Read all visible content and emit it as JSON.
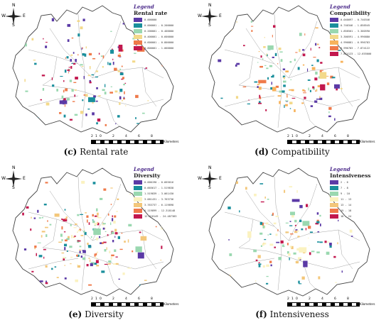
{
  "compass": {
    "n": "N",
    "s": "S",
    "e": "E",
    "w": "W"
  },
  "scale": {
    "ticks": [
      "2",
      "1",
      "0",
      "2",
      "4",
      "6",
      "8"
    ],
    "unit": "Kilometers"
  },
  "legend_word": "Legend",
  "panels": [
    {
      "id": "c",
      "letter": "(c)",
      "caption": "Rental rate",
      "legend_title": "Rental rate",
      "classes": [
        "0.000000",
        "0.000001 - 0.200000",
        "0.200001 - 0.400000",
        "0.400001 - 0.600000",
        "0.600001 - 0.800000",
        "0.800001 - 1.000000"
      ],
      "colors": [
        "#5b3aa6",
        "#1a8f9c",
        "#9ad8b0",
        "#f3d98a",
        "#ef7a4a",
        "#c2184e"
      ]
    },
    {
      "id": "d",
      "letter": "(d)",
      "caption": "Compatibility",
      "legend_title": "Compatibility",
      "classes": [
        "0.040097 - 0.740346",
        "0.740346 - 1.858545",
        "1.858501 - 3.300590",
        "3.300591 - 4.996880",
        "4.996881 - 6.996783",
        "6.996783 - 7.874122",
        "7.874123 - 12.655000"
      ],
      "colors": [
        "#5b3aa6",
        "#1a8f9c",
        "#9ad8b0",
        "#f3d98a",
        "#f7b35c",
        "#ef7a4a",
        "#c2184e"
      ]
    },
    {
      "id": "e",
      "letter": "(e)",
      "caption": "Diversity",
      "legend_title": "Diversity",
      "classes": [
        "0.000190 - 0.665616",
        "0.665617 - 1.519838",
        "1.519839 - 3.061430",
        "3.061431 - 3.763736",
        "3.763737 - 6.119898",
        "6.119899 - 12.318148",
        "12.318149 - 24.487383"
      ],
      "colors": [
        "#5b3aa6",
        "#1a8f9c",
        "#9ad8b0",
        "#fbf2c0",
        "#f3c77a",
        "#ef7a4a",
        "#c2184e"
      ]
    },
    {
      "id": "f",
      "letter": "(f)",
      "caption": "Intensiveness",
      "legend_title": "Intensiveness",
      "classes": [
        "2 - 6",
        "7 - 8",
        "9 - 10",
        "11 - 13",
        "13 - 14",
        "15 - 18",
        "18 - 24"
      ],
      "colors": [
        "#5b3aa6",
        "#1a8f9c",
        "#9ad8b0",
        "#fbf2c0",
        "#f3c77a",
        "#ef7a4a",
        "#c2184e"
      ]
    }
  ]
}
